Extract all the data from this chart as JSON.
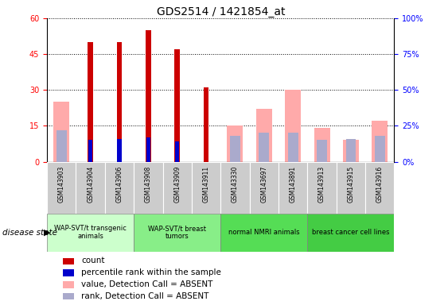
{
  "title": "GDS2514 / 1421854_at",
  "samples": [
    "GSM143903",
    "GSM143904",
    "GSM143906",
    "GSM143908",
    "GSM143909",
    "GSM143911",
    "GSM143330",
    "GSM143697",
    "GSM143891",
    "GSM143913",
    "GSM143915",
    "GSM143916"
  ],
  "count": [
    0,
    50,
    50,
    55,
    47,
    31,
    0,
    0,
    0,
    0,
    0,
    0
  ],
  "percentile_rank": [
    null,
    15,
    16,
    17,
    14,
    null,
    null,
    null,
    null,
    null,
    null,
    null
  ],
  "value_absent": [
    25,
    0,
    0,
    0,
    0,
    0,
    15,
    22,
    30,
    14,
    9,
    17
  ],
  "rank_absent": [
    22,
    0,
    0,
    0,
    0,
    0,
    18,
    20,
    20,
    15,
    16,
    18
  ],
  "groups": [
    {
      "label": "WAP-SVT/t transgenic\nanimals",
      "start": 0,
      "end": 3,
      "color": "#ccffcc"
    },
    {
      "label": "WAP-SVT/t breast\ntumors",
      "start": 3,
      "end": 6,
      "color": "#88ee88"
    },
    {
      "label": "normal NMRI animals",
      "start": 6,
      "end": 9,
      "color": "#55dd55"
    },
    {
      "label": "breast cancer cell lines",
      "start": 9,
      "end": 12,
      "color": "#44cc44"
    }
  ],
  "ylim_left": [
    0,
    60
  ],
  "ylim_right": [
    0,
    100
  ],
  "yticks_left": [
    0,
    15,
    30,
    45,
    60
  ],
  "yticks_right": [
    0,
    25,
    50,
    75,
    100
  ],
  "background_color": "#ffffff",
  "bar_color_red": "#cc0000",
  "bar_color_blue": "#0000cc",
  "bar_color_pink": "#ffaaaa",
  "bar_color_lavender": "#aaaacc",
  "tick_bg_color": "#cccccc"
}
